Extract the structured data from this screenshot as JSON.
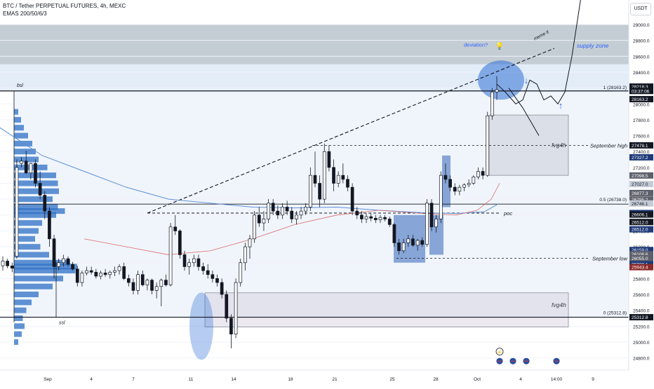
{
  "header": {
    "symbol_line": "BTC / Tether PERPETUAL FUTURES, 4h, MEXC",
    "ema_line": "EMAS 200/50/6/3"
  },
  "currency_button": "USDT",
  "colors": {
    "up_candle": "#131722",
    "down_candle": "#131722",
    "ema_blue": "#5b8fd6",
    "ema_red": "#d96b6b",
    "volume_profile": "#2e6fc6",
    "supply_zone": "#b0bcc6",
    "fvg_box": "#9aa0aa",
    "accent_blue": "#2962ff"
  },
  "chart_data": {
    "type": "candlestick",
    "symbol": "BTC / Tether PERPETUAL FUTURES",
    "interval": "4h",
    "exchange": "MEXC",
    "y_axis": {
      "range": [
        24700,
        29300
      ],
      "ticks": [
        24800,
        25000,
        25200,
        25400,
        25600,
        25800,
        26000,
        26200,
        26400,
        26600,
        26800,
        27000,
        27200,
        27400,
        27600,
        27800,
        28000,
        28200,
        28400,
        28600,
        28800,
        29000
      ],
      "tick_labels": [
        "24800.0",
        "25000.0",
        "25200.0",
        "25400.0",
        "25600.0",
        "25800.0",
        "26000.0",
        "26200.0",
        "26400.0",
        "26600.0",
        "26800.0",
        "27000.0",
        "27200.0",
        "27400.0",
        "27600.0",
        "27800.0",
        "28000.0",
        "28200.0",
        "28400.0",
        "28600.0",
        "28800.0",
        "29000.0"
      ]
    },
    "x_axis": {
      "labels": [
        "Sep",
        "4",
        "7",
        "11",
        "14",
        "18",
        "21",
        "25",
        "28",
        "Oct",
        "4",
        "14:00",
        "9"
      ]
    },
    "candles": [
      [
        25960,
        26080,
        25900,
        26020
      ],
      [
        26020,
        26050,
        25930,
        25960
      ],
      [
        25960,
        26000,
        25880,
        25930
      ],
      [
        26080,
        27300,
        26050,
        27200
      ],
      [
        27250,
        27330,
        27200,
        27280
      ],
      [
        27280,
        27410,
        27120,
        27130
      ],
      [
        27130,
        27260,
        27050,
        27250
      ],
      [
        27250,
        27300,
        26950,
        27000
      ],
      [
        27000,
        27150,
        26800,
        26850
      ],
      [
        26850,
        26900,
        26550,
        26650
      ],
      [
        26650,
        26700,
        26200,
        26300
      ],
      [
        26300,
        26350,
        25800,
        25950
      ],
      [
        25950,
        26050,
        25900,
        26000
      ],
      [
        26000,
        26100,
        25950,
        26050
      ],
      [
        26050,
        26080,
        25950,
        25980
      ],
      [
        25980,
        26010,
        25900,
        25920
      ],
      [
        25920,
        25960,
        25700,
        25750
      ],
      [
        25750,
        25900,
        25700,
        25870
      ],
      [
        25870,
        25950,
        25840,
        25900
      ],
      [
        25900,
        25950,
        25850,
        25880
      ],
      [
        25880,
        25920,
        25800,
        25830
      ],
      [
        25830,
        25900,
        25790,
        25870
      ],
      [
        25870,
        25920,
        25820,
        25850
      ],
      [
        25850,
        25900,
        25800,
        25880
      ],
      [
        25880,
        25950,
        25830,
        25900
      ],
      [
        25900,
        25980,
        25850,
        25950
      ],
      [
        25950,
        26000,
        25780,
        25800
      ],
      [
        25800,
        25850,
        25700,
        25750
      ],
      [
        25750,
        25800,
        25600,
        25650
      ],
      [
        25650,
        25900,
        25600,
        25850
      ],
      [
        25850,
        25900,
        25700,
        25720
      ],
      [
        25720,
        25800,
        25650,
        25780
      ],
      [
        25780,
        25800,
        25600,
        25650
      ],
      [
        25650,
        25750,
        25550,
        25700
      ],
      [
        25700,
        25800,
        25450,
        25780
      ],
      [
        25780,
        25850,
        25700,
        25720
      ],
      [
        25720,
        26500,
        25700,
        26450
      ],
      [
        26450,
        26600,
        26350,
        26400
      ],
      [
        26400,
        26420,
        26050,
        26100
      ],
      [
        26100,
        26150,
        25900,
        25950
      ],
      [
        25950,
        26050,
        25850,
        26000
      ],
      [
        26000,
        26100,
        25950,
        26050
      ],
      [
        26050,
        26100,
        25900,
        25950
      ],
      [
        25950,
        26000,
        25850,
        25900
      ],
      [
        25900,
        25980,
        25800,
        25850
      ],
      [
        25850,
        25900,
        25750,
        25800
      ],
      [
        25800,
        25850,
        25700,
        25750
      ],
      [
        25750,
        25800,
        25550,
        25600
      ],
      [
        25600,
        25650,
        25250,
        25300
      ],
      [
        25300,
        25350,
        24920,
        25100
      ],
      [
        25100,
        25800,
        25050,
        25750
      ],
      [
        25750,
        26050,
        25700,
        26000
      ],
      [
        26000,
        26250,
        25900,
        26200
      ],
      [
        26200,
        26350,
        26050,
        26300
      ],
      [
        26300,
        26650,
        26250,
        26600
      ],
      [
        26600,
        26700,
        26450,
        26500
      ],
      [
        26500,
        26650,
        26400,
        26550
      ],
      [
        26550,
        26800,
        26500,
        26750
      ],
      [
        26750,
        26800,
        26600,
        26650
      ],
      [
        26650,
        26720,
        26550,
        26600
      ],
      [
        26600,
        26750,
        26550,
        26700
      ],
      [
        26700,
        26780,
        26600,
        26650
      ],
      [
        26650,
        26700,
        26500,
        26550
      ],
      [
        26550,
        26650,
        26480,
        26600
      ],
      [
        26600,
        26700,
        26550,
        26650
      ],
      [
        26650,
        26750,
        26600,
        26700
      ],
      [
        26700,
        27200,
        26650,
        27100
      ],
      [
        27100,
        27400,
        26950,
        27000
      ],
      [
        27000,
        27100,
        26700,
        26800
      ],
      [
        26800,
        27500,
        26750,
        27400
      ],
      [
        27400,
        27480,
        27150,
        27200
      ],
      [
        27200,
        27300,
        26900,
        27000
      ],
      [
        27000,
        27150,
        26950,
        27100
      ],
      [
        27100,
        27250,
        27000,
        27050
      ],
      [
        27050,
        27100,
        26900,
        26950
      ],
      [
        26950,
        27000,
        26600,
        26650
      ],
      [
        26650,
        26700,
        26550,
        26600
      ],
      [
        26600,
        26650,
        26500,
        26550
      ],
      [
        26550,
        26620,
        26500,
        26580
      ],
      [
        26580,
        26620,
        26520,
        26560
      ],
      [
        26560,
        26600,
        26500,
        26540
      ],
      [
        26540,
        26600,
        26500,
        26570
      ],
      [
        26570,
        26600,
        26520,
        26550
      ],
      [
        26550,
        26580,
        26450,
        26480
      ],
      [
        26480,
        26500,
        26200,
        26250
      ],
      [
        26250,
        26300,
        26100,
        26150
      ],
      [
        26150,
        26300,
        26120,
        26250
      ],
      [
        26250,
        26350,
        26200,
        26300
      ],
      [
        26300,
        26350,
        26200,
        26220
      ],
      [
        26220,
        26300,
        26150,
        26280
      ],
      [
        26280,
        26320,
        26200,
        26230
      ],
      [
        26230,
        26800,
        26200,
        26750
      ],
      [
        26750,
        26800,
        26400,
        26450
      ],
      [
        26450,
        26600,
        26380,
        26550
      ],
      [
        26550,
        27150,
        26500,
        27100
      ],
      [
        27100,
        27250,
        27000,
        27050
      ],
      [
        27050,
        27100,
        26900,
        26950
      ],
      [
        26950,
        27000,
        26850,
        26900
      ],
      [
        26900,
        26980,
        26850,
        26950
      ],
      [
        26950,
        27000,
        26900,
        26980
      ],
      [
        26980,
        27050,
        26950,
        27000
      ],
      [
        27000,
        27100,
        26980,
        27080
      ],
      [
        27080,
        27200,
        27050,
        27150
      ],
      [
        27150,
        27200,
        27050,
        27100
      ],
      [
        27100,
        27900,
        27080,
        27850
      ],
      [
        27850,
        28200,
        27800,
        28150
      ],
      [
        28150,
        28350,
        28050,
        28180
      ]
    ],
    "price_labels": [
      {
        "value": 28218.3,
        "label": "28218.3",
        "style": "dark"
      },
      {
        "value": 28163.2,
        "label": "03:37:06",
        "style": "dark"
      },
      {
        "value": 28060,
        "label": "28163.2",
        "style": "dark"
      },
      {
        "value": 27478.1,
        "label": "27478.1",
        "style": "dark"
      },
      {
        "value": 27327.2,
        "label": "27327.2",
        "style": "navy"
      },
      {
        "value": 27098.5,
        "label": "27098.5",
        "style": "gray"
      },
      {
        "value": 26990,
        "label": "27027.0",
        "style": "light"
      },
      {
        "value": 26877.3,
        "label": "26877.3",
        "style": "gray"
      },
      {
        "value": 26795.2,
        "label": "26795.2",
        "style": "gray"
      },
      {
        "value": 26746.1,
        "label": "26746.1",
        "style": "light"
      },
      {
        "value": 26625.2,
        "label": "26625.2",
        "style": "navy"
      },
      {
        "value": 26606.1,
        "label": "26606.1",
        "style": "dark"
      },
      {
        "value": 26512.0,
        "label": "26512.0",
        "style": "dark"
      },
      {
        "value": 26420,
        "label": "26512.0",
        "style": "navy"
      },
      {
        "value": 26159.0,
        "label": "26159.0",
        "style": "navy"
      },
      {
        "value": 26106.6,
        "label": "26106.6",
        "style": "gray"
      },
      {
        "value": 26055.0,
        "label": "26055.0",
        "style": "gray"
      },
      {
        "value": 25980.1,
        "label": "25980.1",
        "style": "navy"
      },
      {
        "value": 25943.4,
        "label": "25943.4",
        "style": "red"
      },
      {
        "value": 25312.8,
        "label": "25312.8",
        "style": "dark"
      }
    ],
    "annotations": {
      "bsl": "bsl",
      "ssl": "ssl",
      "fib_1": "1 (28163.2)",
      "fib_05": "0.5 (26738.0)",
      "fib_0": "0 (25312.8)",
      "september_high": "September high",
      "september_low": "September low",
      "poc": "poc",
      "fvg_upper": "fvg4h",
      "fvg_lower": "fvg4h",
      "deviation": "deviation?",
      "supply_zone": "supply zone",
      "trendline": "meme tl"
    },
    "levels": {
      "bsl": 28163.2,
      "half": 26738.0,
      "ssl": 25312.8,
      "september_high": 27478.1,
      "september_low": 26055.0,
      "poc": 26625.2
    },
    "zones": {
      "supply_zone": [
        28500,
        29000
      ],
      "fvg_upper": [
        27100,
        27860
      ],
      "fvg_lower": [
        25190,
        25620
      ]
    }
  }
}
